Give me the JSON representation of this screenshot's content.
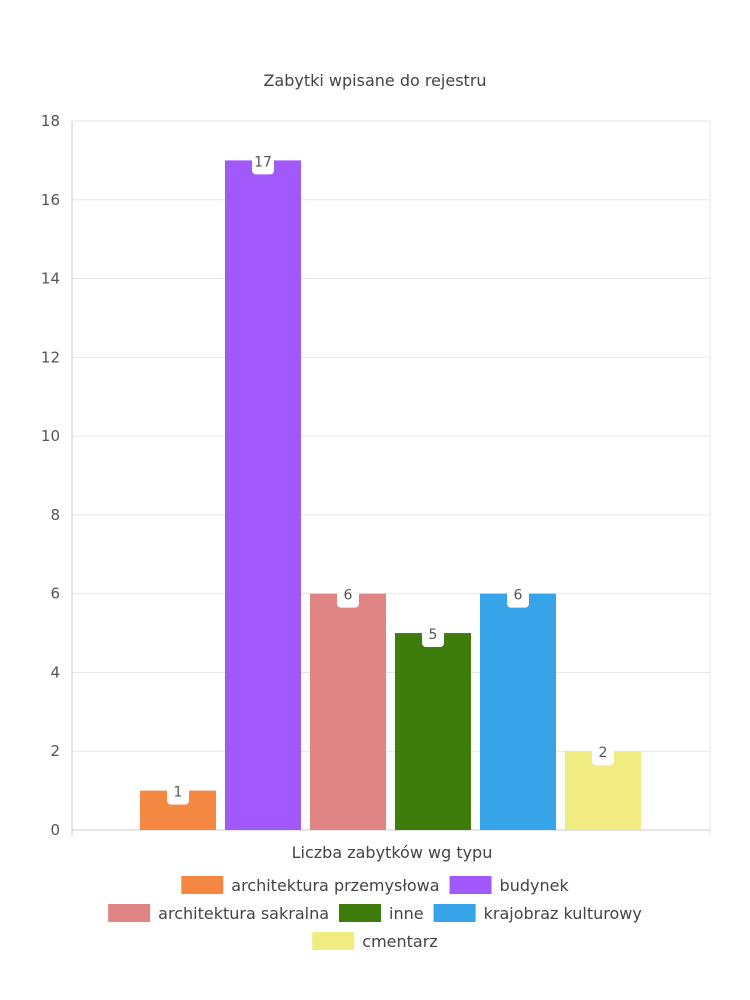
{
  "chart_data": {
    "type": "bar",
    "title": "Zabytki wpisane do rejestru",
    "xlabel": "Liczba zabytków wg typu",
    "ylabel": "",
    "ylim": [
      0,
      18
    ],
    "yticks": [
      0,
      2,
      4,
      6,
      8,
      10,
      12,
      14,
      16,
      18
    ],
    "grid": true,
    "legend_position": "bottom",
    "series": [
      {
        "name": "architektura przemysłowa",
        "value": 1,
        "color": "#f48843"
      },
      {
        "name": "budynek",
        "value": 17,
        "color": "#a259fb"
      },
      {
        "name": "architektura sakralna",
        "value": 6,
        "color": "#e18484"
      },
      {
        "name": "inne",
        "value": 5,
        "color": "#3e7c0c"
      },
      {
        "name": "krajobraz kulturowy",
        "value": 6,
        "color": "#37a3e9"
      },
      {
        "name": "cmentarz",
        "value": 2,
        "color": "#f1ec82"
      }
    ]
  }
}
